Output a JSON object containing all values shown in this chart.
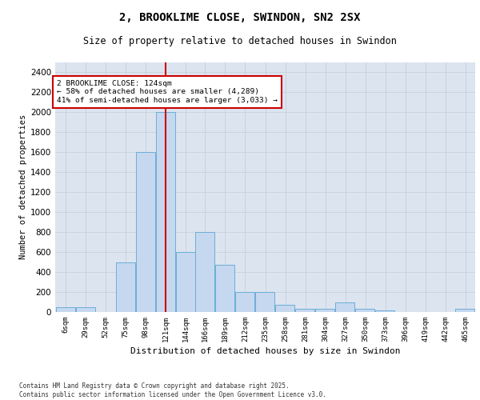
{
  "title1": "2, BROOKLIME CLOSE, SWINDON, SN2 2SX",
  "title2": "Size of property relative to detached houses in Swindon",
  "xlabel": "Distribution of detached houses by size in Swindon",
  "ylabel": "Number of detached properties",
  "annotation_title": "2 BROOKLIME CLOSE: 124sqm",
  "annotation_line1": "← 58% of detached houses are smaller (4,289)",
  "annotation_line2": "41% of semi-detached houses are larger (3,033) →",
  "footer1": "Contains HM Land Registry data © Crown copyright and database right 2025.",
  "footer2": "Contains public sector information licensed under the Open Government Licence v3.0.",
  "bar_color": "#c5d8ef",
  "bar_edge_color": "#6baed6",
  "grid_color": "#c8d0dc",
  "background_color": "#dce4f0",
  "red_line_x": 121,
  "annotation_box_color": "#ffffff",
  "annotation_box_edge": "#cc0000",
  "bins": [
    6,
    29,
    52,
    75,
    98,
    121,
    144,
    166,
    189,
    212,
    235,
    258,
    281,
    304,
    327,
    350,
    373,
    396,
    419,
    442,
    465
  ],
  "values": [
    50,
    50,
    0,
    500,
    1600,
    2000,
    600,
    800,
    470,
    200,
    200,
    70,
    30,
    30,
    100,
    30,
    15,
    0,
    0,
    0,
    30
  ],
  "ylim": [
    0,
    2500
  ],
  "yticks": [
    0,
    200,
    400,
    600,
    800,
    1000,
    1200,
    1400,
    1600,
    1800,
    2000,
    2200,
    2400
  ]
}
